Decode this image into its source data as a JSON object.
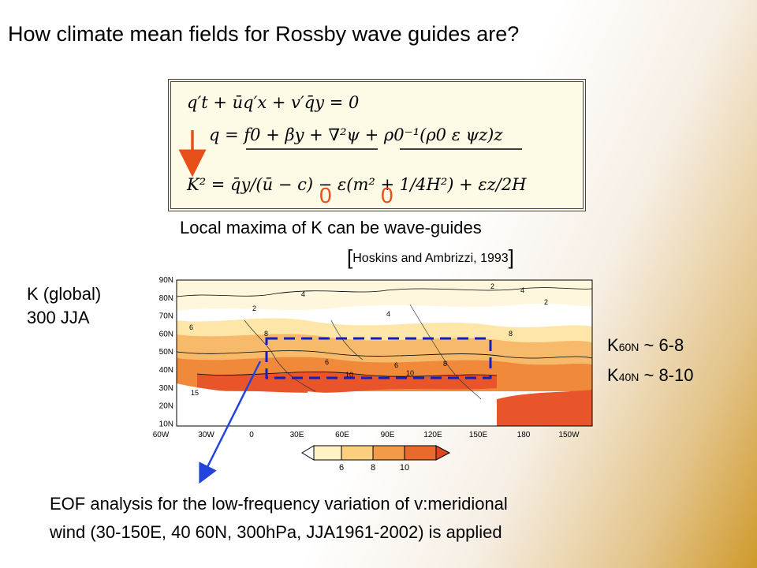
{
  "title": "How climate mean fields for Rossby wave guides are?",
  "equations": {
    "eq1": "q′t + ūq′x + v′q̄y = 0",
    "eq2": "q = f0 + βy + ∇²ψ + ρ0⁻¹(ρ0 ε ψz)z",
    "eq3": "K² = q̄y/(ū − c) − ε(m² + 1/4H²) + εz/2H"
  },
  "zero_marks": [
    "0",
    "0"
  ],
  "caption": "Local maxima of K can be wave-guides",
  "citation": {
    "open": "[",
    "text": "Hoskins and Ambrizzi, 1993",
    "close": "]"
  },
  "map_label": {
    "line1": "K (global)",
    "line2": "300 JJA"
  },
  "k_values": {
    "k60_base": "K",
    "k60_sub": "60N",
    "k60_value": " ~ 6-8",
    "k40_base": "K",
    "k40_sub": "40N",
    "k40_value": " ~ 8-10"
  },
  "map": {
    "lat_labels": [
      "90N",
      "80N",
      "70N",
      "60N",
      "50N",
      "40N",
      "30N",
      "20N",
      "10N"
    ],
    "lon_labels": [
      "60W",
      "30W",
      "0",
      "30E",
      "60E",
      "90E",
      "120E",
      "150E",
      "180",
      "150W"
    ],
    "contour_labels": [
      "2",
      "4",
      "6",
      "8",
      "10",
      "15"
    ]
  },
  "colorbar": {
    "ticks": [
      "6",
      "8",
      "10"
    ]
  },
  "eof": {
    "line1": "EOF analysis for the low-frequency variation of v:meridional",
    "line2": "wind (30-150E, 40 60N, 300hPa, JJA1961-2002) is applied"
  },
  "colors": {
    "arrow_red": "#e8501a",
    "arrow_blue": "#2244dd",
    "box_blue": "#1020c0",
    "band_light": "#fde6a8",
    "band_mid": "#f7ba6a",
    "band_orange": "#f08a3a",
    "band_red": "#e8552a"
  }
}
